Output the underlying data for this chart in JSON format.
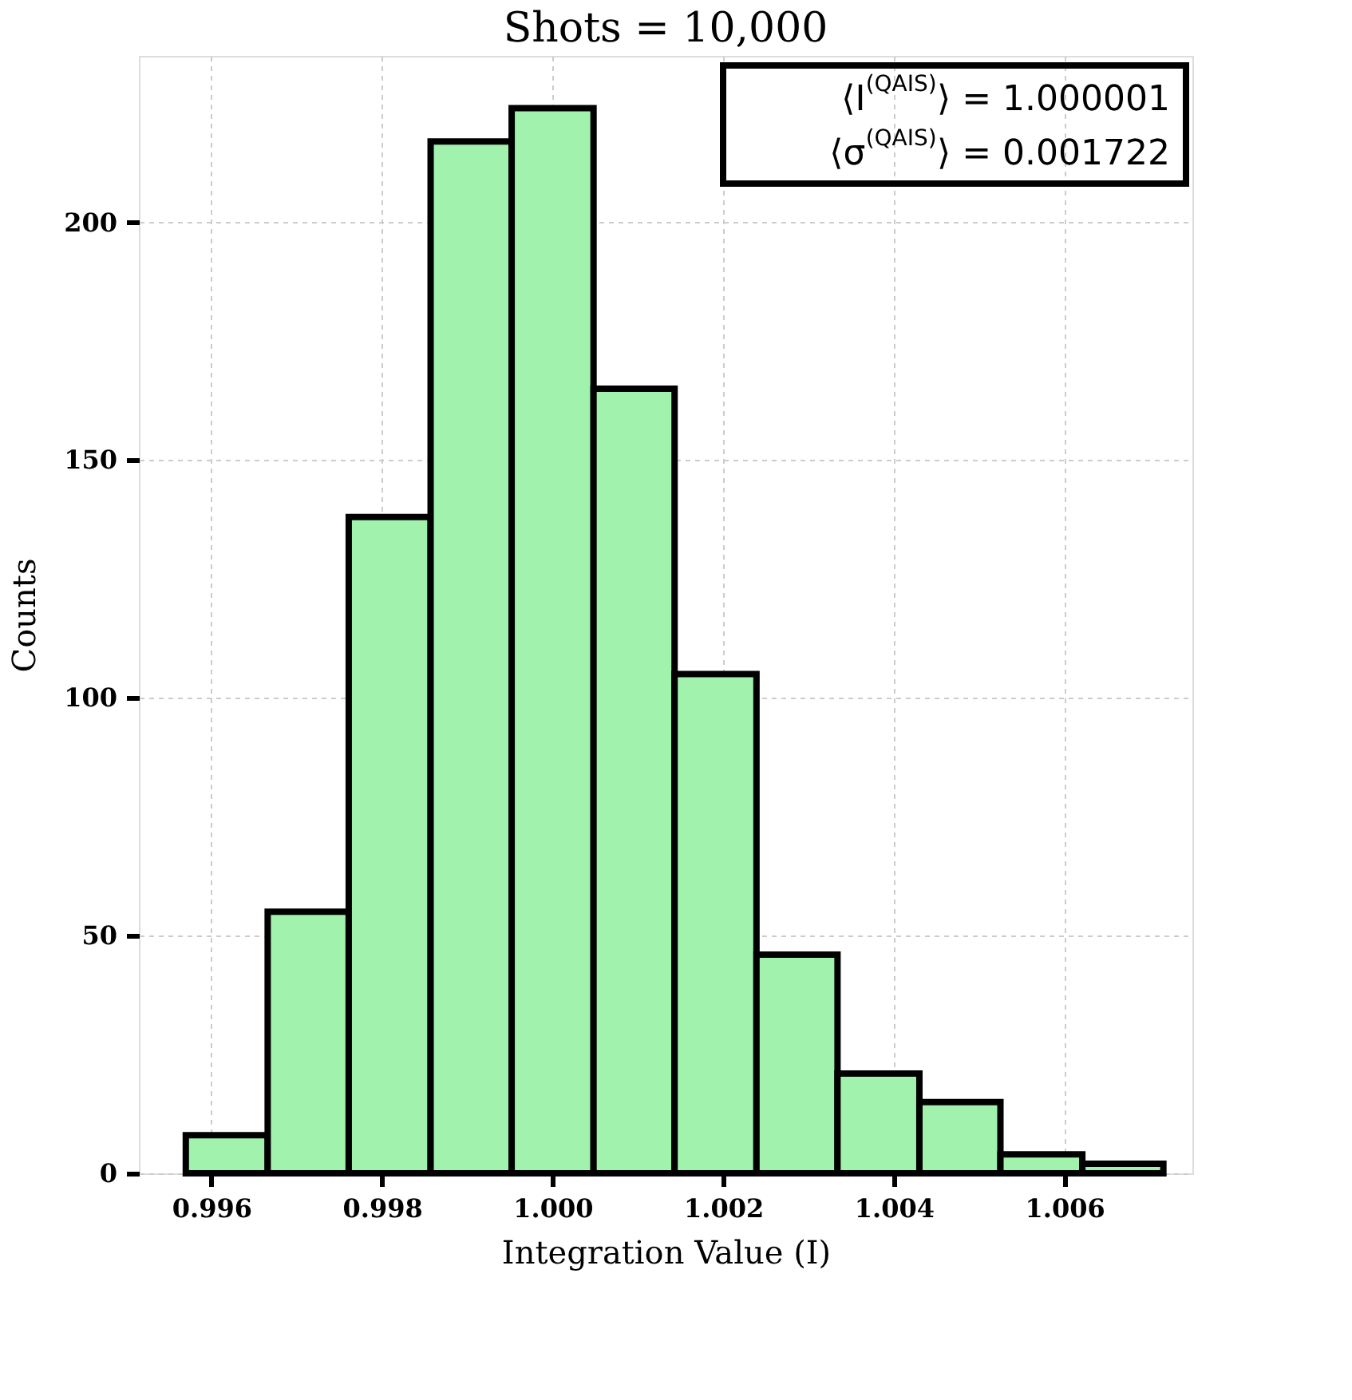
{
  "chart_data": {
    "type": "histogram",
    "title": "Shots = 10,000",
    "xlabel": "Integration Value (I)",
    "ylabel": "Counts",
    "bins": [
      0.9957,
      0.99666,
      0.99761,
      0.99857,
      0.99952,
      1.00048,
      1.00143,
      1.00239,
      1.00334,
      1.0043,
      1.00525,
      1.00621,
      1.00716
    ],
    "values": [
      8,
      55,
      138,
      217,
      224,
      165,
      105,
      46,
      21,
      15,
      4,
      2
    ],
    "color": "#a0f2ac",
    "xlim": [
      0.99515,
      1.0075
    ],
    "xticks": [
      {
        "value": 0.996,
        "label": "0.996"
      },
      {
        "value": 0.998,
        "label": "0.998"
      },
      {
        "value": 1.0,
        "label": "1.000"
      },
      {
        "value": 1.002,
        "label": "1.002"
      },
      {
        "value": 1.004,
        "label": "1.004"
      },
      {
        "value": 1.006,
        "label": "1.006"
      }
    ],
    "ylim": [
      0,
      235
    ],
    "yticks": [
      0,
      50,
      100,
      150,
      200
    ],
    "grid": true,
    "annotations": [
      "⟨I$^{(QAIS)}$⟩ = 1.000001",
      "⟨σ$^{(QAIS)}$⟩ = 0.001722"
    ]
  }
}
